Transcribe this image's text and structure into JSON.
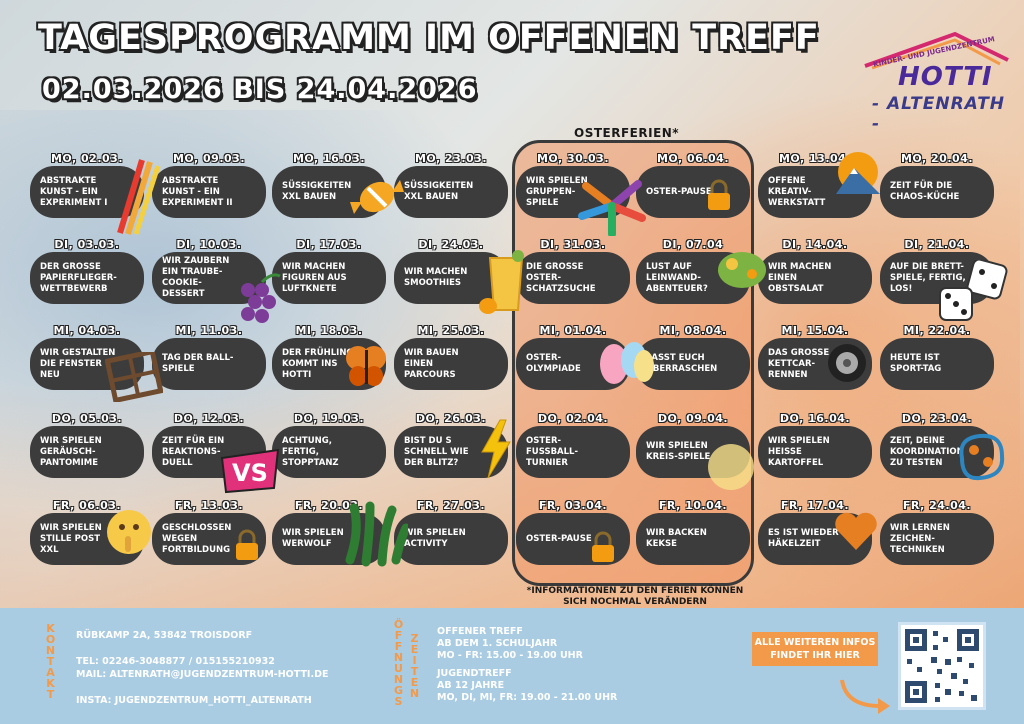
{
  "header": {
    "title": "TAGESPROGRAMM IM OFFENEN TREFF",
    "dates": "02.03.2026  BIS 24.04.2026"
  },
  "logo": {
    "small_text": "KINDER- UND JUGENDZENTRUM",
    "name": "HOTTI",
    "place": "- ALTENRATH -"
  },
  "oster": {
    "label": "OSTERFERIEN*",
    "note": "*INFORMATIONEN ZU DEN FERIEN KÖNNEN SICH NOCHMAL VERÄNDERN"
  },
  "columns": [
    [
      "MO, 02.03.",
      "ABSTRAKTE KUNST - EIN EXPERIMENT I",
      "DI, 03.03.",
      "DER GROßE PAPIERFLIEGER-WETTBEWERB",
      "MI, 04.03.",
      "WIR GESTALTEN DIE FENSTER NEU",
      "DO, 05.03.",
      "WIR SPIELEN GERÄUSCH-PANTOMIME",
      "FR, 06.03.",
      "WIR SPIELEN STILLE POST XXL"
    ],
    [
      "MO, 09.03.",
      "ABSTRAKTE KUNST - EIN EXPERIMENT II",
      "DI, 10.03.",
      "WIR ZAUBERN EIN TRAUBE-COOKIE-DESSERT",
      "MI, 11.03.",
      "TAG DER BALL-SPIELE",
      "DO, 12.03.",
      "ZEIT FÜR EIN REAKTIONS-DUELL",
      "FR, 13.03.",
      "GESCHLOSSEN WEGEN FORTBILDUNG"
    ],
    [
      "MO, 16.03.",
      "SÜßIGKEITEN XXL BAUEN",
      "DI, 17.03.",
      "WIR MACHEN FIGUREN AUS LUFTKNETE",
      "MI, 18.03.",
      "DER FRÜHLING KOMMT INS HOTTI",
      "DO, 19.03.",
      "ACHTUNG, FERTIG, STOPPTANZ",
      "FR, 20.03.",
      "WIR SPIELEN WERWOLF"
    ],
    [
      "MO, 23.03.",
      "SÜßIGKEITEN XXL BAUEN",
      "DI, 24.03.",
      "WIR MACHEN SMOOTHIES",
      "MI, 25.03.",
      "WIR BAUEN EINEN PARCOURS",
      "DO, 26.03.",
      "BIST DU S SCHNELL WIE DER BLITZ?",
      "FR, 27.03.",
      "WIR SPIELEN ACTIVITY"
    ],
    [
      "MO, 30.03.",
      "WIR SPIELEN GRUPPEN-SPIELE",
      "DI, 31.03.",
      "DIE GROßE OSTER-SCHATZSUCHE",
      "MI, 01.04.",
      "OSTER-OLYMPIADE",
      "DO, 02.04.",
      "OSTER-FUßBALL-TURNIER",
      "FR, 03.04.",
      "OSTER-PAUSE"
    ],
    [
      "MO, 06.04.",
      "OSTER-PAUSE",
      "DI, 07.04",
      "LUST AUF LEINWAND-ABENTEUER?",
      "MI, 08.04.",
      "LASST EUCH ÜBERRASCHEN",
      "DO, 09.04.",
      "WIR SPIELEN KREIS-SPIELE",
      "FR, 10.04.",
      "WIR BACKEN KEKSE"
    ],
    [
      "MO, 13.04.",
      "OFFENE KREATIV-WERKSTATT",
      "DI, 14.04.",
      "WIR MACHEN EINEN OBSTSALAT",
      "MI, 15.04.",
      "DAS GROßE KETTCAR-RENNEN",
      "DO, 16.04.",
      "WIR SPIELEN HEIßE KARTOFFEL",
      "FR, 17.04.",
      "ES IST WIEDER HÄKELZEIT"
    ],
    [
      "MO, 20.04.",
      "ZEIT FÜR DIE CHAOS-KÜCHE",
      "DI, 21.04.",
      "AUF DIE BRETT-SPIELE, FERTIG, LOS!",
      "MI, 22.04.",
      "HEUTE IST SPORT-TAG",
      "DO, 23.04.",
      "ZEIT, DEINE KOORDINATION ZU TESTEN",
      "FR, 24.04.",
      "WIR LERNEN ZEICHEN-TECHNIKEN"
    ]
  ],
  "footer": {
    "kontakt_label": "KONTAKT",
    "address": "RÜBKAMP 2A, 53842 TROISDORF",
    "tel": "TEL: 02246-3048877 / 015155210932",
    "mail": "MAIL: ALTENRATH@JUGENDZENTRUM-HOTTI.DE",
    "insta": "INSTA: JUGENDZENTRUM_HOTTI_ALTENRATH",
    "oeffnungs_label": "ÖFFNUNGS",
    "zeiten_label": "ZEITEN",
    "ot_title": "OFFENER TREFF",
    "ot_age": "AB DEM 1. SCHULJAHR",
    "ot_time": "MO - FR: 15.00 - 19.00 UHR",
    "jt_title": "JUGENDTREFF",
    "jt_age": "AB 12 JAHRE",
    "jt_time": "MO, DI, MI, FR: 19.00 - 21.00 UHR",
    "info_button": "ALLE WEITEREN INFOS FINDET IHR HIER"
  },
  "colors": {
    "pill": "#3c3c3c",
    "accent": "#f29a4a",
    "footer": "#a9cce3"
  },
  "icons": [
    "crayons",
    "grapes",
    "window-frame",
    "vs-badge",
    "thinking-face",
    "candy",
    "butterfly",
    "monster-hand",
    "smoothie",
    "lightning",
    "hands-circle",
    "easter-eggs",
    "lock",
    "chameleon-painting",
    "sunset",
    "tire",
    "heart",
    "dice",
    "brain-dots"
  ]
}
